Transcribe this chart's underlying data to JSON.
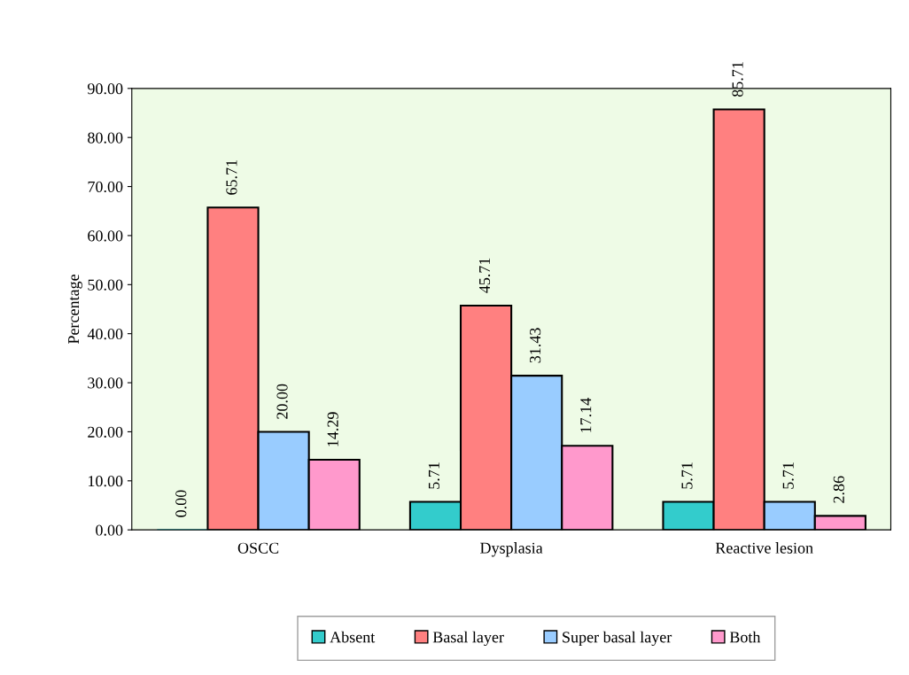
{
  "chart_data": {
    "type": "bar",
    "ylabel": "Percentage",
    "categories": [
      "OSCC",
      "Dysplasia",
      "Reactive lesion"
    ],
    "series": [
      {
        "name": "Absent",
        "color": "#33cccc",
        "values": [
          0.0,
          5.71,
          5.71
        ],
        "value_labels": [
          "0.00",
          "5.71",
          "5.71"
        ]
      },
      {
        "name": "Basal layer",
        "color": "#ff8080",
        "values": [
          65.71,
          45.71,
          85.71
        ],
        "value_labels": [
          "65.71",
          "45.71",
          "85.71"
        ]
      },
      {
        "name": "Super basal layer",
        "color": "#99ccff",
        "values": [
          20.0,
          31.43,
          5.71
        ],
        "value_labels": [
          "20.00",
          "31.43",
          "5.71"
        ]
      },
      {
        "name": "Both",
        "color": "#ff99cc",
        "values": [
          14.29,
          17.14,
          2.86
        ],
        "value_labels": [
          "14.29",
          "17.14",
          "2.86"
        ]
      }
    ],
    "ylim": [
      0,
      90
    ],
    "yticks": [
      {
        "value": 0,
        "label": "0.00"
      },
      {
        "value": 10,
        "label": "10.00"
      },
      {
        "value": 20,
        "label": "20.00"
      },
      {
        "value": 30,
        "label": "30.00"
      },
      {
        "value": 40,
        "label": "40.00"
      },
      {
        "value": 50,
        "label": "50.00"
      },
      {
        "value": 60,
        "label": "60.00"
      },
      {
        "value": 70,
        "label": "70.00"
      },
      {
        "value": 80,
        "label": "80.00"
      },
      {
        "value": 90,
        "label": "90.00"
      }
    ],
    "grid": false,
    "legend": "bottom"
  }
}
